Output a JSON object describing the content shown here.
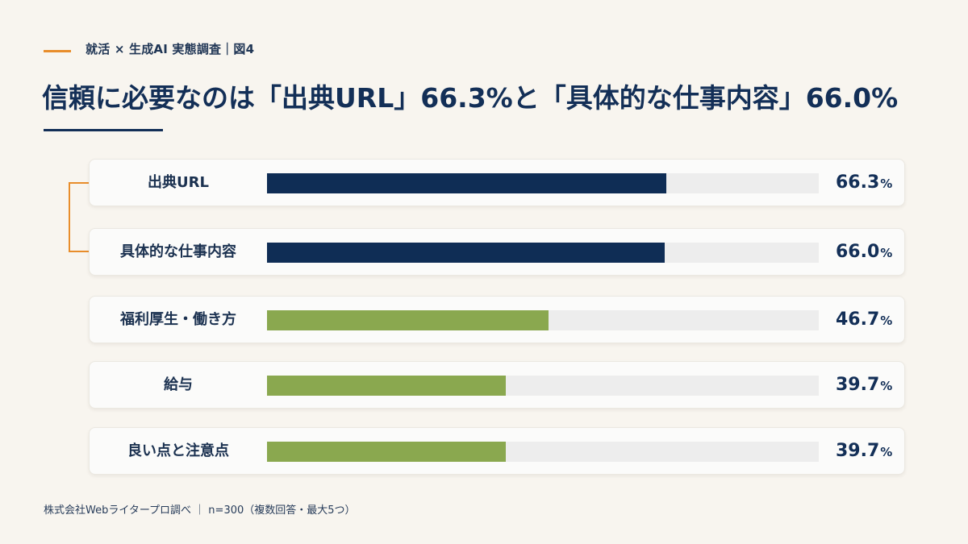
{
  "header": {
    "kicker": "就活 × 生成AI 実態調査｜図4",
    "title": "信頼に必要なのは「出典URL」66.3%と「具体的な仕事内容」66.0%"
  },
  "colors": {
    "primary": "#0f2d55",
    "secondary": "#8aa84f",
    "accent": "#e88d2b",
    "track": "#ededed"
  },
  "chart_data": {
    "type": "bar",
    "orientation": "horizontal",
    "categories": [
      "出典URL",
      "具体的な仕事内容",
      "福利厚生・働き方",
      "給与",
      "良い点と注意点"
    ],
    "values": [
      66.3,
      66.0,
      46.7,
      39.7,
      39.7
    ],
    "value_labels": [
      "66.3",
      "66.0",
      "46.7",
      "39.7",
      "39.7"
    ],
    "unit": "%",
    "xlim": [
      0,
      91.6
    ],
    "highlight_indices": [
      0,
      1
    ],
    "bar_colors": [
      "#0f2d55",
      "#0f2d55",
      "#8aa84f",
      "#8aa84f",
      "#8aa84f"
    ],
    "grid": false,
    "legend": "none"
  },
  "footer": {
    "source": "株式会社Webライタープロ調べ ｜ n=300（複数回答・最大5つ）"
  }
}
